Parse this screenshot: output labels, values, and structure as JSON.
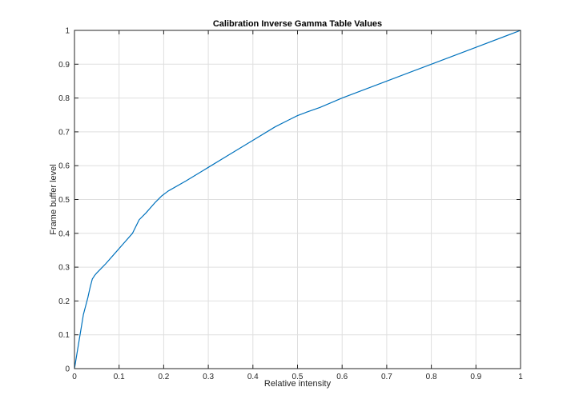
{
  "chart_data": {
    "type": "line",
    "title": "Calibration Inverse Gamma Table Values",
    "xlabel": "Relative intensity",
    "ylabel": "Frame buffer level",
    "xlim": [
      0,
      1
    ],
    "ylim": [
      0,
      1
    ],
    "grid": true,
    "legend": "none",
    "x_ticks": [
      "0",
      "0.1",
      "0.2",
      "0.3",
      "0.4",
      "0.5",
      "0.6",
      "0.7",
      "0.8",
      "0.9",
      "1"
    ],
    "y_ticks": [
      "0",
      "0.1",
      "0.2",
      "0.3",
      "0.4",
      "0.5",
      "0.6",
      "0.7",
      "0.8",
      "0.9",
      "1"
    ],
    "series": [
      {
        "color": "#0072bd",
        "x": [
          0,
          0.005,
          0.01,
          0.015,
          0.02,
          0.025,
          0.03,
          0.035,
          0.04,
          0.045,
          0.05,
          0.07,
          0.09,
          0.11,
          0.13,
          0.145,
          0.16,
          0.18,
          0.195,
          0.21,
          0.25,
          0.3,
          0.35,
          0.4,
          0.45,
          0.48,
          0.5,
          0.52,
          0.55,
          0.6,
          0.7,
          0.8,
          0.9,
          1.0
        ],
        "y": [
          0,
          0.04,
          0.08,
          0.12,
          0.16,
          0.185,
          0.21,
          0.24,
          0.265,
          0.275,
          0.283,
          0.31,
          0.34,
          0.37,
          0.4,
          0.44,
          0.46,
          0.49,
          0.51,
          0.525,
          0.555,
          0.595,
          0.635,
          0.675,
          0.715,
          0.735,
          0.748,
          0.758,
          0.772,
          0.8,
          0.85,
          0.9,
          0.95,
          1.0
        ]
      }
    ]
  }
}
